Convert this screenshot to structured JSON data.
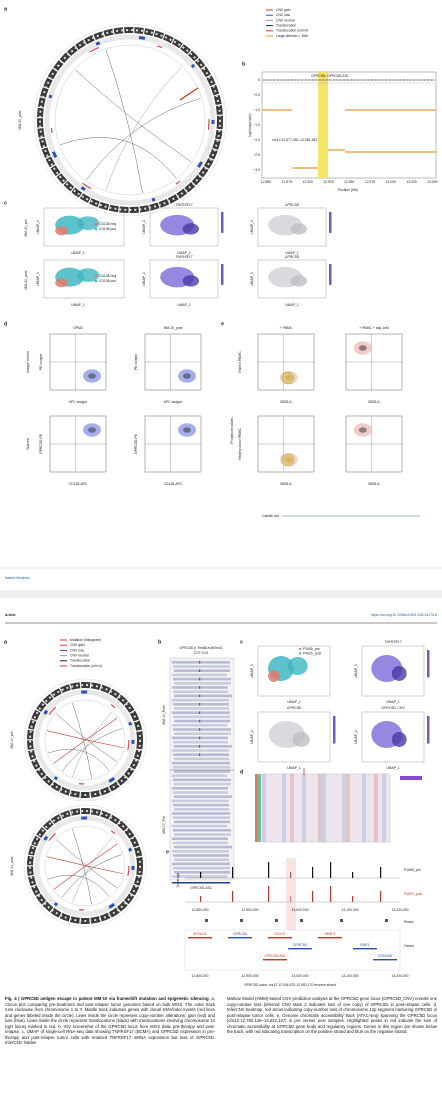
{
  "figure_top": {
    "panel_a": {
      "letter": "a",
      "side_label": "MM-20_post",
      "legend": [
        "CNV gain",
        "CNV loss",
        "CNV neutral",
        "Translocation",
        "Translocation (chr14)",
        "Large deletion > 1Mb"
      ]
    },
    "panel_b": {
      "letter": "b",
      "title": "GPRC5D, GPRC5D-AS1",
      "annotation": "chr12:12,877,450–12,981,981",
      "y_label": "log2(copy ratio)",
      "x_label": "Position (Mb)",
      "yticks": [
        "0",
        "−0.5",
        "−1.0",
        "−1.5",
        "−2.0",
        "−2.5",
        "−3.0"
      ],
      "xticks": [
        "12.850",
        "12.875",
        "12.900",
        "12.925",
        "12.950",
        "12.975",
        "13.000",
        "13.025",
        "13.050"
      ]
    },
    "panel_c": {
      "letter": "c",
      "x_label": "UMAP_1",
      "y_label": "UMAP_2",
      "rows": [
        {
          "label": "MM-20_pre",
          "legend": [
            "CD138 neg",
            "CD138 pos"
          ],
          "genes": [
            "TNFRSF17",
            "GPRC5D"
          ]
        },
        {
          "label": "MM-20_post",
          "legend": [
            "CD138 neg",
            "CD138 pos"
          ],
          "genes": [
            "TNFRSF17",
            "GPRC5D"
          ]
        }
      ]
    },
    "panel_d": {
      "letter": "d",
      "columns": [
        "OPM2",
        "MM-20_post"
      ],
      "rows": [
        {
          "label": "Isotype control",
          "y_label": "PE isotype",
          "x_label": "APC isotype"
        },
        {
          "label": "Stained",
          "y_label": "GPRC5D-PE",
          "x_label": "CD138-APC"
        }
      ]
    },
    "panel_e": {
      "letter": "e",
      "columns": [
        "+ PBMC",
        "+ PBMC + talq 1nM"
      ],
      "rows": [
        "Patient PBMC",
        "Healthy donor PBMC"
      ],
      "side_label": "Propidium iodide–",
      "x_label": "B525-A",
      "bottom_label": "Calcein AM"
    }
  },
  "footer": {
    "journal": "Nature Medicine"
  },
  "header": {
    "section": "Article",
    "doi": "https://doi.org/10.1038/s41591-025-04175-8"
  },
  "figure_bottom": {
    "panel_a": {
      "letter": "a",
      "legend": [
        "Mutation (histogram)",
        "CNV gain",
        "CNV loss",
        "CNV neutral",
        "Translocation",
        "Translocation (chr14)"
      ],
      "circles": [
        "MM-10_pre",
        "MM-10_post"
      ]
    },
    "panel_b": {
      "letter": "b",
      "title": "GPRC5D p.Thr88LeufsTer21",
      "subtitle": "CCF 0.91",
      "tracks": [
        "MM-10_Post",
        "MM-10_Pre"
      ],
      "gene": "GPRC5D-AS1"
    },
    "panel_c": {
      "letter": "c",
      "legend": [
        "P1695_pre",
        "P4520_post"
      ],
      "plots": [
        "TNFRSF17",
        "GPRC5D",
        "GPRC5D_CNV"
      ],
      "x_label": "UMAP_1",
      "y_label": "UMAP_2"
    },
    "panel_d": {
      "letter": "d"
    },
    "panel_e": {
      "letter": "e",
      "y_label": "Coverage",
      "tracks": [
        "P1695_pre",
        "P4520_post"
      ],
      "xticks": [
        "12,800,000",
        "12,900,000",
        "13,000,000",
        "13,100,000",
        "13,200,000"
      ],
      "peaks_label": "Peaks",
      "genes_label": "Genes",
      "genes": [
        "APOLD1",
        "GPRC5A",
        "DDX47",
        "GPRC5D",
        "HEBP1",
        "EMP1",
        "GPRC5D-AS1",
        "CDKN1B"
      ],
      "locus": "GPRC5D locus: chr12 12,946,575-12,952,170 reverse strand"
    }
  },
  "caption": {
    "label": "Fig. 4 | GPRC5D antigen escape in patient MM-10 via frameshift mutation and epigenetic silencing.",
    "left": "a, Circos plot comparing pre-treatment and post-relapse tumor genomes based on bulk WGS. The outer track runs clockwise from chromosome 1 to Y. Middle track indicates genes with clonal SNV/indel events (red lines and genes labeled inside the circle). Lines inside the circle represent copy-number alterations: gain (red) and loss (blue). Lines inside the circle represent translocations (black) with translocations involving chromosome 14 (IgH locus) marked in red. b, IGV screenshot of the GPRC5D locus from WGS data, pre-therapy and post-relapse. c, UMAP of single-cell RNA-seq data showing TNFRSF17 (BCMA) and GPRC5D expression in pre-therapy and post-relapse tumor cells with retained TNFRSF17 mRNA expression but loss of GPRC5D. InferCNV hidden",
    "right": "Markov Model (HMM)-based CNV prediction analysis at the GPRC5D gene locus (GPRC5D_CNV) reveals one copy-number loss (inferred CNV state 2 indicates loss of one copy) of GPRC5D in post-relapse cells. d, InferCNV heatmap, red arrow indicating copy-number loss of chromosome 12p segment harboring GPRC5D in post-relapse tumor cells. e, Genome chromatin accessibility track (ATAC-seq) spanning the GPRC5D locus (chr12:12,782,146–13,222,147) in pre versus post samples. Highlighted peaks in red indicate the loss of chromatin accessibility at GPRC5D gene body and regulatory regions. Genes in this region are shown below the track, with red indicating transcription on the positive strand and blue on the negative strand."
  }
}
